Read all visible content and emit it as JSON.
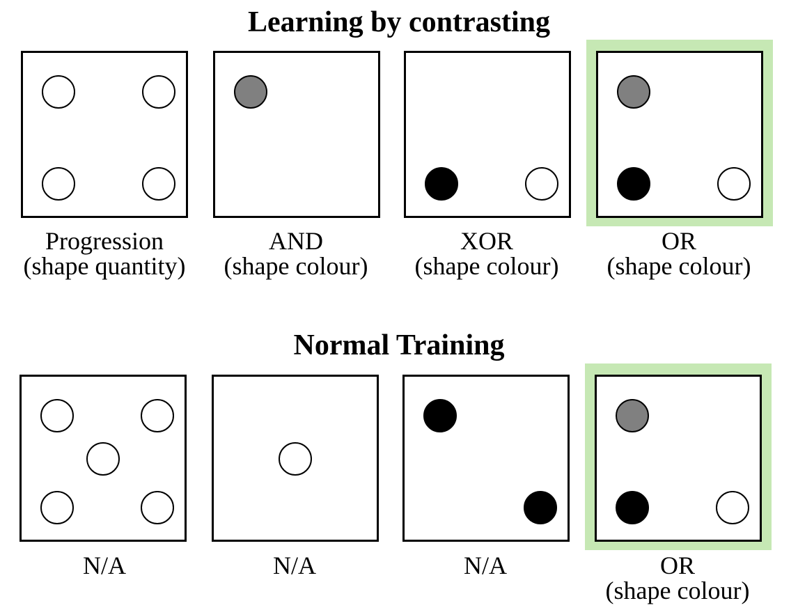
{
  "top_section": {
    "title": "Learning by contrasting",
    "panels": [
      {
        "caption_line1": "Progression",
        "caption_line2": "(shape quantity)",
        "highlighted": false,
        "shapes": [
          {
            "position": "top-left",
            "fill": "white"
          },
          {
            "position": "top-right",
            "fill": "white"
          },
          {
            "position": "bottom-left",
            "fill": "white"
          },
          {
            "position": "bottom-right",
            "fill": "white"
          }
        ]
      },
      {
        "caption_line1": "AND",
        "caption_line2": "(shape colour)",
        "highlighted": false,
        "shapes": [
          {
            "position": "top-left",
            "fill": "grey"
          }
        ]
      },
      {
        "caption_line1": "XOR",
        "caption_line2": "(shape colour)",
        "highlighted": false,
        "shapes": [
          {
            "position": "bottom-left",
            "fill": "black"
          },
          {
            "position": "bottom-right",
            "fill": "white"
          }
        ]
      },
      {
        "caption_line1": "OR",
        "caption_line2": "(shape colour)",
        "highlighted": true,
        "shapes": [
          {
            "position": "top-left",
            "fill": "grey"
          },
          {
            "position": "bottom-left",
            "fill": "black"
          },
          {
            "position": "bottom-right",
            "fill": "white"
          }
        ]
      }
    ]
  },
  "bottom_section": {
    "title": "Normal Training",
    "panels": [
      {
        "caption_line1": "N/A",
        "caption_line2": "",
        "highlighted": false,
        "shapes": [
          {
            "position": "top-left",
            "fill": "white"
          },
          {
            "position": "top-right",
            "fill": "white"
          },
          {
            "position": "center",
            "fill": "white"
          },
          {
            "position": "bottom-left",
            "fill": "white"
          },
          {
            "position": "bottom-right",
            "fill": "white"
          }
        ]
      },
      {
        "caption_line1": "N/A",
        "caption_line2": "",
        "highlighted": false,
        "shapes": [
          {
            "position": "center",
            "fill": "white"
          }
        ]
      },
      {
        "caption_line1": "N/A",
        "caption_line2": "",
        "highlighted": false,
        "shapes": [
          {
            "position": "top-left",
            "fill": "black"
          },
          {
            "position": "bottom-right",
            "fill": "black"
          }
        ]
      },
      {
        "caption_line1": "OR",
        "caption_line2": "(shape colour)",
        "highlighted": true,
        "shapes": [
          {
            "position": "top-left",
            "fill": "grey"
          },
          {
            "position": "bottom-left",
            "fill": "black"
          },
          {
            "position": "bottom-right",
            "fill": "white"
          }
        ]
      }
    ]
  },
  "colors": {
    "highlight": "#c6e8b4",
    "grey_fill": "#808080",
    "black_fill": "#000000",
    "white_fill": "#ffffff"
  }
}
